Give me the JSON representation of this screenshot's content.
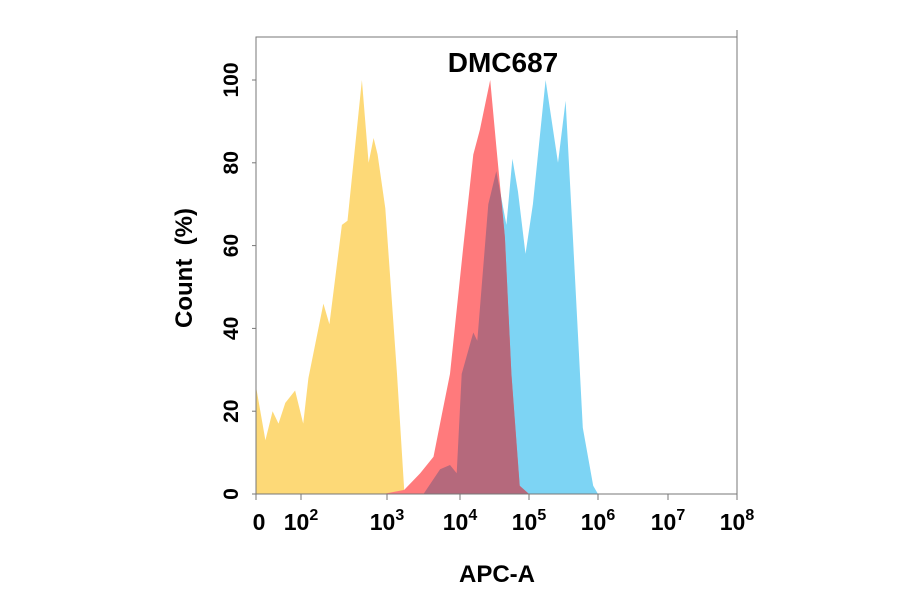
{
  "chart_data": {
    "type": "area",
    "title": "DMC687",
    "xlabel": "APC-A",
    "ylabel": "Count  (%)",
    "x_scale": "logicle",
    "xlim": [
      0,
      100000000
    ],
    "ylim": [
      0,
      110
    ],
    "x_ticks": [
      {
        "value": 0,
        "base": "0",
        "exp": ""
      },
      {
        "value": 100,
        "base": "10",
        "exp": "2"
      },
      {
        "value": 1000,
        "base": "10",
        "exp": "3"
      },
      {
        "value": 10000,
        "base": "10",
        "exp": "4"
      },
      {
        "value": 100000,
        "base": "10",
        "exp": "5"
      },
      {
        "value": 1000000,
        "base": "10",
        "exp": "6"
      },
      {
        "value": 10000000,
        "base": "10",
        "exp": "7"
      },
      {
        "value": 100000000,
        "base": "10",
        "exp": "8"
      }
    ],
    "y_ticks": [
      "0",
      "20",
      "40",
      "60",
      "80",
      "100"
    ],
    "grid": false,
    "overlap_color": "#b5697c",
    "series": [
      {
        "color": "#fdd977",
        "points": [
          [
            0,
            26
          ],
          [
            21,
            13
          ],
          [
            37,
            20
          ],
          [
            50,
            17
          ],
          [
            65,
            22
          ],
          [
            87,
            25
          ],
          [
            106,
            17
          ],
          [
            122,
            28
          ],
          [
            182,
            46
          ],
          [
            214,
            41
          ],
          [
            299,
            65
          ],
          [
            347,
            66
          ],
          [
            511,
            100
          ],
          [
            611,
            80
          ],
          [
            699,
            86
          ],
          [
            777,
            82
          ],
          [
            955,
            69
          ],
          [
            1370,
            29
          ],
          [
            1722,
            1
          ],
          [
            1850,
            0
          ]
        ]
      },
      {
        "color": "#7dd4f4",
        "points": [
          [
            3160,
            0
          ],
          [
            5340,
            6
          ],
          [
            7300,
            7
          ],
          [
            9000,
            5
          ],
          [
            10600,
            29
          ],
          [
            15600,
            39
          ],
          [
            17800,
            37
          ],
          [
            25700,
            70
          ],
          [
            33600,
            78
          ],
          [
            47100,
            65
          ],
          [
            57500,
            81
          ],
          [
            69200,
            73
          ],
          [
            89100,
            58
          ],
          [
            114000,
            70
          ],
          [
            174000,
            100
          ],
          [
            263000,
            80
          ],
          [
            339000,
            95
          ],
          [
            433000,
            62
          ],
          [
            603000,
            16
          ],
          [
            851000,
            2
          ],
          [
            1000000,
            0
          ]
        ]
      },
      {
        "color": "#ff7a7c",
        "points": [
          [
            900,
            0
          ],
          [
            1720,
            1
          ],
          [
            2850,
            5
          ],
          [
            4330,
            9
          ],
          [
            5620,
            19
          ],
          [
            7300,
            29
          ],
          [
            11200,
            60
          ],
          [
            15600,
            82
          ],
          [
            19400,
            88
          ],
          [
            27400,
            100
          ],
          [
            33600,
            84
          ],
          [
            44700,
            62
          ],
          [
            55600,
            29
          ],
          [
            73300,
            2
          ],
          [
            100000,
            0
          ]
        ]
      }
    ]
  }
}
